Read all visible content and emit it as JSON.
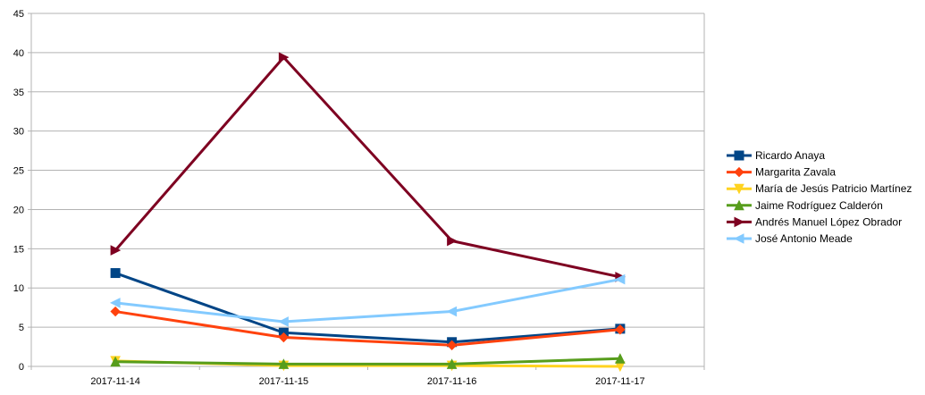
{
  "chart_data": {
    "type": "line",
    "title": "",
    "xlabel": "",
    "ylabel": "",
    "categories": [
      "2017-11-14",
      "2017-11-15",
      "2017-11-16",
      "2017-11-17"
    ],
    "ylim": [
      0,
      45
    ],
    "yticks": [
      0,
      5,
      10,
      15,
      20,
      25,
      30,
      35,
      40,
      45
    ],
    "grid": true,
    "legend_position": "right",
    "series": [
      {
        "name": "Ricardo Anaya",
        "values": [
          11.9,
          4.3,
          3.1,
          4.8
        ],
        "color": "#004586",
        "marker": "square"
      },
      {
        "name": "Margarita Zavala",
        "values": [
          7.0,
          3.7,
          2.7,
          4.7
        ],
        "color": "#ff420e",
        "marker": "diamond"
      },
      {
        "name": "María de Jesús Patricio Martínez",
        "values": [
          0.7,
          0.1,
          0.1,
          0.0
        ],
        "color": "#ffd320",
        "marker": "triangle-down"
      },
      {
        "name": "Jaime Rodríguez Calderón",
        "values": [
          0.6,
          0.3,
          0.3,
          1.0
        ],
        "color": "#579d1c",
        "marker": "triangle-up"
      },
      {
        "name": "Andrés Manuel López Obrador",
        "values": [
          14.8,
          39.4,
          16.0,
          11.4
        ],
        "color": "#7e0021",
        "marker": "triangle-right"
      },
      {
        "name": "José Antonio Meade",
        "values": [
          8.1,
          5.7,
          7.0,
          11.1
        ],
        "color": "#83caff",
        "marker": "triangle-left"
      }
    ]
  }
}
